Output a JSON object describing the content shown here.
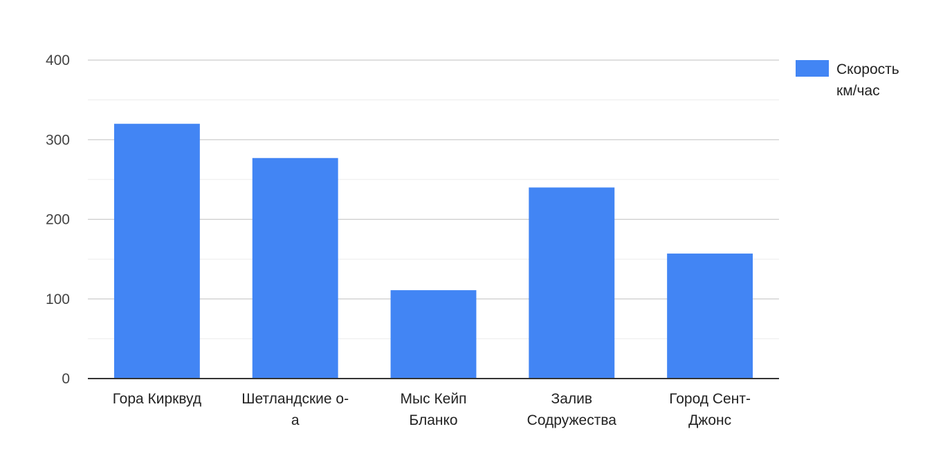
{
  "chart_data": {
    "type": "bar",
    "categories": [
      [
        "Гора Кирквуд"
      ],
      [
        "Шетландские о-",
        "а"
      ],
      [
        "Мыс Кейп",
        "Бланко"
      ],
      [
        "Залив",
        "Содружества"
      ],
      [
        "Город Сент-",
        "Джонс"
      ]
    ],
    "series": [
      {
        "name": [
          "Скорость",
          "км/час"
        ],
        "values": [
          320,
          277,
          111,
          240,
          157
        ],
        "color": "#4285f4"
      }
    ],
    "ylim": [
      0,
      400
    ],
    "yticks": [
      0,
      100,
      200,
      300,
      400
    ],
    "grid": true,
    "legend": "right"
  }
}
